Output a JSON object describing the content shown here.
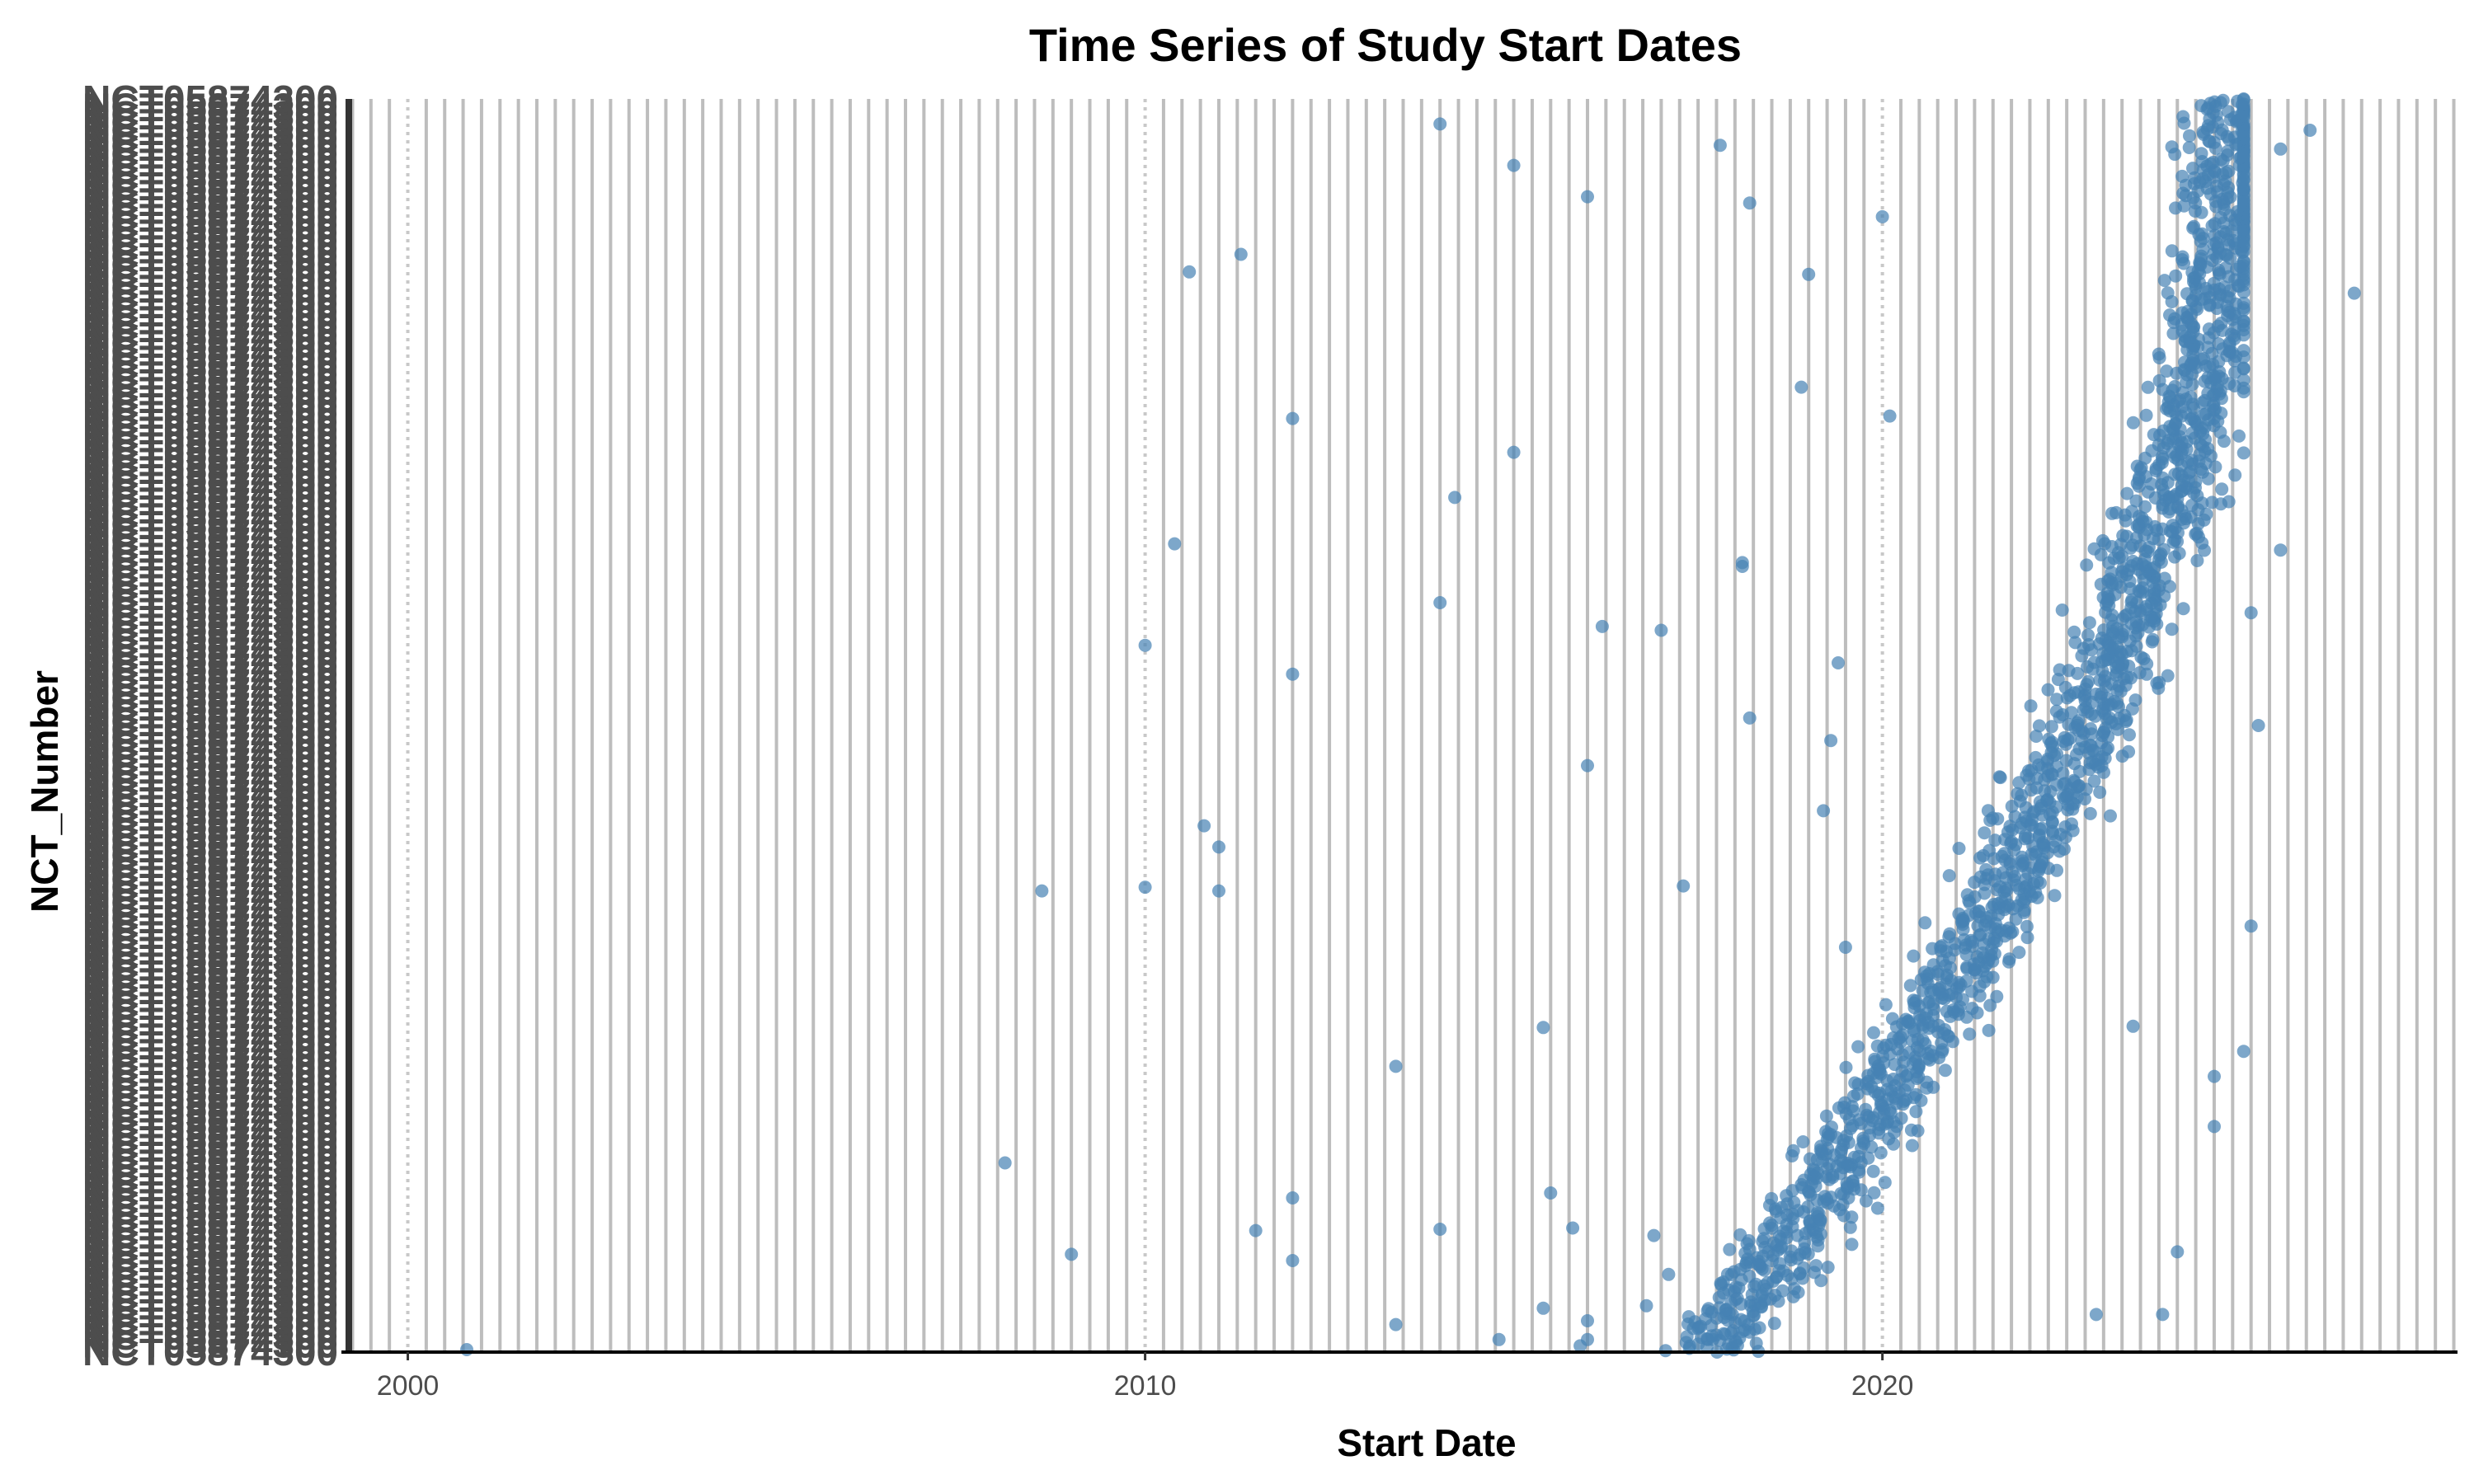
{
  "chart_data": {
    "type": "scatter",
    "title": "Time Series of Study Start Dates",
    "xlabel": "Start Date",
    "ylabel": "NCT_Number",
    "xlim": [
      1999.2,
      2027.8
    ],
    "x_ticks": [
      "2000",
      "2010",
      "2020"
    ],
    "y_tick_label_text": "NCT05874300",
    "y_tick_label_count": 160,
    "point_color": "#4682b4",
    "point_opacity": 0.7,
    "grid": {
      "major_x": "dotted",
      "minor_x": "solid",
      "y": "solid"
    },
    "y_note_points_are_rank_fraction_0_bottom_1_top": true,
    "series": [
      {
        "name": "",
        "points": [
          [
            2000.8,
            0.002
          ],
          [
            2013.4,
            0.022
          ],
          [
            2014.8,
            0.01
          ],
          [
            2015.4,
            0.035
          ],
          [
            2015.9,
            0.005
          ],
          [
            2016.0,
            0.025
          ],
          [
            2016.0,
            0.01
          ],
          [
            2016.8,
            0.037
          ],
          [
            2017.1,
            0.062
          ],
          [
            2017.5,
            0.019
          ],
          [
            2017.7,
            0.01
          ],
          [
            2017.9,
            0.062
          ],
          [
            2018.2,
            0.082
          ],
          [
            2018.6,
            0.065
          ],
          [
            2019.1,
            0.069
          ],
          [
            2015.5,
            0.127
          ],
          [
            2015.8,
            0.099
          ],
          [
            2016.9,
            0.093
          ],
          [
            2012.0,
            0.073
          ],
          [
            2011.5,
            0.097
          ],
          [
            2009.0,
            0.078
          ],
          [
            2008.1,
            0.151
          ],
          [
            2014.0,
            0.098
          ],
          [
            2012.0,
            0.123
          ],
          [
            2013.4,
            0.228
          ],
          [
            2015.4,
            0.259
          ],
          [
            2008.6,
            0.368
          ],
          [
            2010.0,
            0.371
          ],
          [
            2011.0,
            0.368
          ],
          [
            2011.0,
            0.403
          ],
          [
            2010.8,
            0.42
          ],
          [
            2010.0,
            0.564
          ],
          [
            2012.0,
            0.541
          ],
          [
            2016.2,
            0.579
          ],
          [
            2017.3,
            0.372
          ],
          [
            2016.0,
            0.468
          ],
          [
            2018.2,
            0.506
          ],
          [
            2014.0,
            0.598
          ],
          [
            2017.0,
            0.576
          ],
          [
            2018.1,
            0.63
          ],
          [
            2018.1,
            0.627
          ],
          [
            2010.4,
            0.645
          ],
          [
            2014.2,
            0.682
          ],
          [
            2015.0,
            0.718
          ],
          [
            2012.0,
            0.745
          ],
          [
            2010.6,
            0.862
          ],
          [
            2011.3,
            0.876
          ],
          [
            2015.0,
            0.947
          ],
          [
            2016.0,
            0.922
          ],
          [
            2014.0,
            0.98
          ],
          [
            2017.8,
            0.963
          ],
          [
            2018.2,
            0.917
          ],
          [
            2019.0,
            0.86
          ],
          [
            2018.9,
            0.77
          ],
          [
            2020.1,
            0.747
          ],
          [
            2020.0,
            0.906
          ],
          [
            2019.4,
            0.55
          ],
          [
            2019.2,
            0.432
          ],
          [
            2019.5,
            0.323
          ],
          [
            2019.3,
            0.488
          ],
          [
            2026.4,
            0.845
          ],
          [
            2025.8,
            0.975
          ],
          [
            2025.4,
            0.96
          ],
          [
            2025.4,
            0.64
          ],
          [
            2025.1,
            0.5
          ],
          [
            2025.0,
            0.59
          ],
          [
            2025.0,
            0.34
          ],
          [
            2024.9,
            0.24
          ],
          [
            2024.5,
            0.22
          ],
          [
            2024.5,
            0.18
          ],
          [
            2023.4,
            0.26
          ],
          [
            2022.9,
            0.03
          ],
          [
            2023.8,
            0.03
          ],
          [
            2024.0,
            0.08
          ]
        ]
      }
    ]
  }
}
